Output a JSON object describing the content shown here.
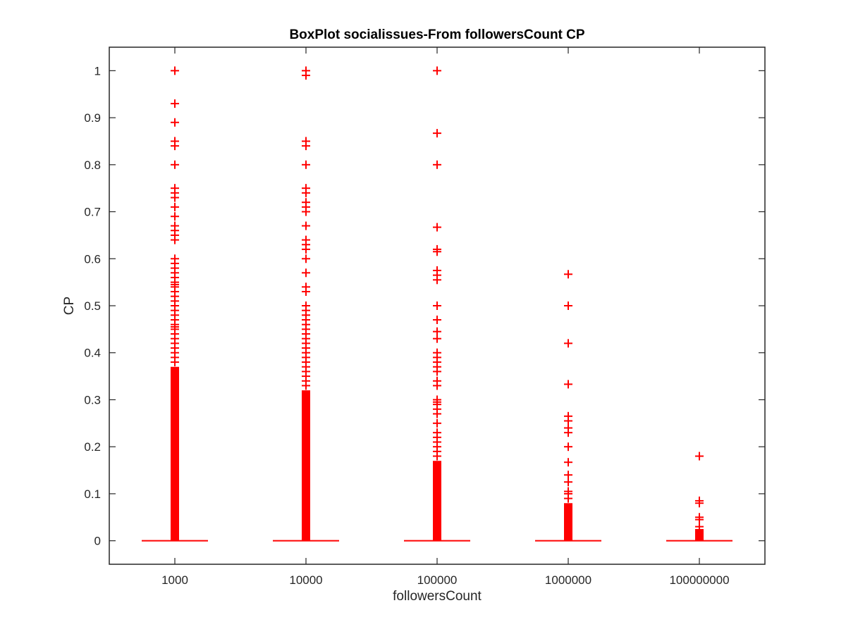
{
  "chart_data": {
    "type": "box",
    "title": "BoxPlot socialissues-From followersCount CP",
    "xlabel": "followersCount",
    "ylabel": "CP",
    "categories": [
      "1000",
      "10000",
      "100000",
      "1000000",
      "100000000"
    ],
    "ylim": [
      -0.05,
      1.05
    ],
    "yticks": [
      0,
      0.1,
      0.2,
      0.3,
      0.4,
      0.5,
      0.6,
      0.7,
      0.8,
      0.9,
      1
    ],
    "ytick_labels": [
      "0",
      "0.1",
      "0.2",
      "0.3",
      "0.4",
      "0.5",
      "0.6",
      "0.7",
      "0.8",
      "0.9",
      "1"
    ],
    "grid": false,
    "box_color": "#ff0000",
    "groups": [
      {
        "category": "1000",
        "median": 0,
        "q1": 0,
        "q3": 0,
        "whisker_low": 0,
        "whisker_high": 0,
        "outlier_band": [
          0,
          0.37
        ],
        "outliers": [
          1.0,
          0.93,
          0.89,
          0.85,
          0.84,
          0.8,
          0.75,
          0.74,
          0.73,
          0.71,
          0.69,
          0.67,
          0.66,
          0.65,
          0.64,
          0.6,
          0.59,
          0.58,
          0.57,
          0.56,
          0.55,
          0.545,
          0.54,
          0.53,
          0.52,
          0.51,
          0.5,
          0.49,
          0.48,
          0.47,
          0.46,
          0.455,
          0.45,
          0.44,
          0.43,
          0.42,
          0.41,
          0.4,
          0.39,
          0.38
        ]
      },
      {
        "category": "10000",
        "median": 0,
        "q1": 0,
        "q3": 0,
        "whisker_low": 0,
        "whisker_high": 0,
        "outlier_band": [
          0,
          0.32
        ],
        "outliers": [
          1.0,
          0.99,
          0.85,
          0.84,
          0.8,
          0.75,
          0.74,
          0.72,
          0.71,
          0.7,
          0.67,
          0.64,
          0.63,
          0.62,
          0.6,
          0.57,
          0.54,
          0.53,
          0.5,
          0.49,
          0.48,
          0.47,
          0.46,
          0.45,
          0.44,
          0.43,
          0.42,
          0.41,
          0.4,
          0.39,
          0.38,
          0.37,
          0.36,
          0.35,
          0.34,
          0.33
        ]
      },
      {
        "category": "100000",
        "median": 0,
        "q1": 0,
        "q3": 0,
        "whisker_low": 0,
        "whisker_high": 0,
        "outlier_band": [
          0,
          0.17
        ],
        "outliers": [
          1.0,
          0.867,
          0.8,
          0.667,
          0.62,
          0.615,
          0.575,
          0.565,
          0.555,
          0.5,
          0.47,
          0.445,
          0.43,
          0.4,
          0.39,
          0.38,
          0.37,
          0.36,
          0.34,
          0.33,
          0.3,
          0.295,
          0.29,
          0.28,
          0.27,
          0.25,
          0.23,
          0.22,
          0.21,
          0.2,
          0.19,
          0.18
        ]
      },
      {
        "category": "1000000",
        "median": 0,
        "q1": 0,
        "q3": 0,
        "whisker_low": 0,
        "whisker_high": 0,
        "outlier_band": [
          0,
          0.08
        ],
        "outliers": [
          0.567,
          0.5,
          0.42,
          0.333,
          0.265,
          0.255,
          0.24,
          0.23,
          0.2,
          0.167,
          0.14,
          0.125,
          0.105,
          0.1,
          0.09
        ]
      },
      {
        "category": "100000000",
        "median": 0,
        "q1": 0,
        "q3": 0,
        "whisker_low": 0,
        "whisker_high": 0,
        "outlier_band": [
          0,
          0.025
        ],
        "outliers": [
          0.18,
          0.085,
          0.08,
          0.05,
          0.045,
          0.03
        ]
      }
    ]
  }
}
